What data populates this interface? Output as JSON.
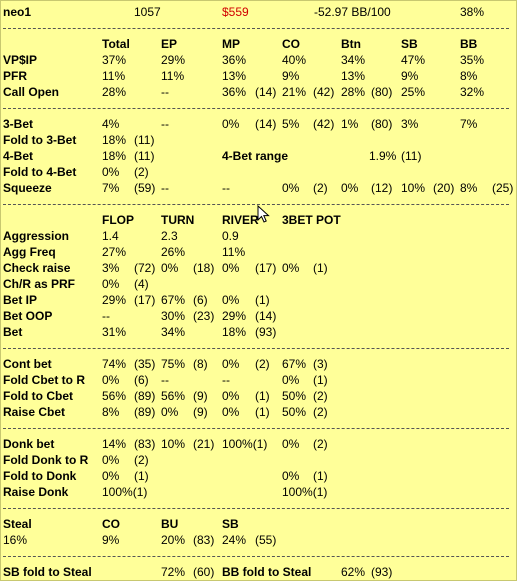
{
  "header": {
    "player": "neo1",
    "hands": "1057",
    "money": "$559",
    "winrate": "-52.97 BB/100",
    "pct": "38%",
    "money_color": "#d00000"
  },
  "positions_section": {
    "headers": [
      "Total",
      "EP",
      "MP",
      "CO",
      "Btn",
      "SB",
      "BB"
    ],
    "vpip": {
      "label": "VP$IP",
      "values": [
        "37%",
        "29%",
        "36%",
        "40%",
        "34%",
        "47%",
        "35%"
      ]
    },
    "pfr": {
      "label": "PFR",
      "values": [
        "11%",
        "11%",
        "13%",
        "9%",
        "13%",
        "9%",
        "8%"
      ]
    },
    "call_open": {
      "label": "Call Open",
      "values": [
        "28%",
        "--",
        "36%",
        "(14)",
        "21%",
        "(42)",
        "28%",
        "(80)",
        "25%",
        "32%"
      ]
    }
  },
  "threebet_section": {
    "three_bet": {
      "label": "3-Bet",
      "values": [
        "4%",
        "--",
        "0%",
        "(14)",
        "5%",
        "(42)",
        "1%",
        "(80)",
        "3%",
        "7%"
      ]
    },
    "fold_to_3bet": {
      "label": "Fold to 3-Bet",
      "values": [
        "18%",
        "(11)"
      ]
    },
    "four_bet": {
      "label": "4-Bet",
      "values": [
        "18%",
        "(11)"
      ]
    },
    "four_bet_range": {
      "label": "4-Bet range",
      "value": "1.9%",
      "count": "(11)"
    },
    "fold_to_4bet": {
      "label": "Fold to 4-Bet",
      "values": [
        "0%",
        "(2)"
      ]
    },
    "squeeze": {
      "label": "Squeeze",
      "values": [
        "7%",
        "(59)",
        "--",
        "--",
        "0%",
        "(2)",
        "0%",
        "(12)",
        "10%",
        "(20)",
        "8%",
        "(25)"
      ]
    }
  },
  "postflop_section": {
    "headers": [
      "FLOP",
      "TURN",
      "RIVER",
      "3BET POT"
    ],
    "aggression": {
      "label": "Aggression",
      "values": [
        "1.4",
        "2.3",
        "0.9"
      ]
    },
    "agg_freq": {
      "label": "Agg Freq",
      "values": [
        "27%",
        "26%",
        "11%"
      ]
    },
    "check_raise": {
      "label": "Check raise",
      "values": [
        "3%",
        "(72)",
        "0%",
        "(18)",
        "0%",
        "(17)",
        "0%",
        "(1)"
      ]
    },
    "chr_as_prf": {
      "label": "Ch/R as PRF",
      "values": [
        "0%",
        "(4)"
      ]
    },
    "bet_ip": {
      "label": "Bet IP",
      "values": [
        "29%",
        "(17)",
        "67%",
        "(6)",
        "0%",
        "(1)"
      ]
    },
    "bet_oop": {
      "label": "Bet OOP",
      "values": [
        "--",
        "30%",
        "(23)",
        "29%",
        "(14)"
      ]
    },
    "bet": {
      "label": "Bet",
      "values": [
        "31%",
        "34%",
        "18%",
        "(93)"
      ]
    }
  },
  "cbet_section": {
    "cont_bet": {
      "label": "Cont bet",
      "values": [
        "74%",
        "(35)",
        "75%",
        "(8)",
        "0%",
        "(2)",
        "67%",
        "(3)"
      ]
    },
    "fold_cbet_to_r": {
      "label": "Fold Cbet to R",
      "values": [
        "0%",
        "(6)",
        "--",
        "--",
        "0%",
        "(1)"
      ]
    },
    "fold_to_cbet": {
      "label": "Fold to Cbet",
      "values": [
        "56%",
        "(89)",
        "56%",
        "(9)",
        "0%",
        "(1)",
        "50%",
        "(2)"
      ]
    },
    "raise_cbet": {
      "label": "Raise Cbet",
      "values": [
        "8%",
        "(89)",
        "0%",
        "(9)",
        "0%",
        "(1)",
        "50%",
        "(2)"
      ]
    }
  },
  "donk_section": {
    "donk_bet": {
      "label": "Donk bet",
      "values": [
        "14%",
        "(83)",
        "10%",
        "(21)",
        "100%(1)",
        "0%",
        "(2)"
      ]
    },
    "fold_donk_to_r": {
      "label": "Fold Donk to R",
      "values": [
        "0%",
        "(2)"
      ]
    },
    "fold_to_donk": {
      "label": "Fold to Donk",
      "values": [
        "0%",
        "(1)",
        "0%",
        "(1)"
      ]
    },
    "raise_donk": {
      "label": "Raise Donk",
      "values": [
        "100%(1)",
        "100%(1)"
      ]
    }
  },
  "steal_section": {
    "label": "Steal",
    "headers": [
      "CO",
      "BU",
      "SB"
    ],
    "values": [
      "16%",
      "9%",
      "20%",
      "(83)",
      "24%",
      "(55)"
    ]
  },
  "blind_section": {
    "sb_fold_label": "SB fold to Steal",
    "sb_fold_values": [
      "72%",
      "(60)"
    ],
    "bb_fold_label": "BB fold to Steal",
    "bb_fold_values": [
      "62%",
      "(93)"
    ]
  }
}
